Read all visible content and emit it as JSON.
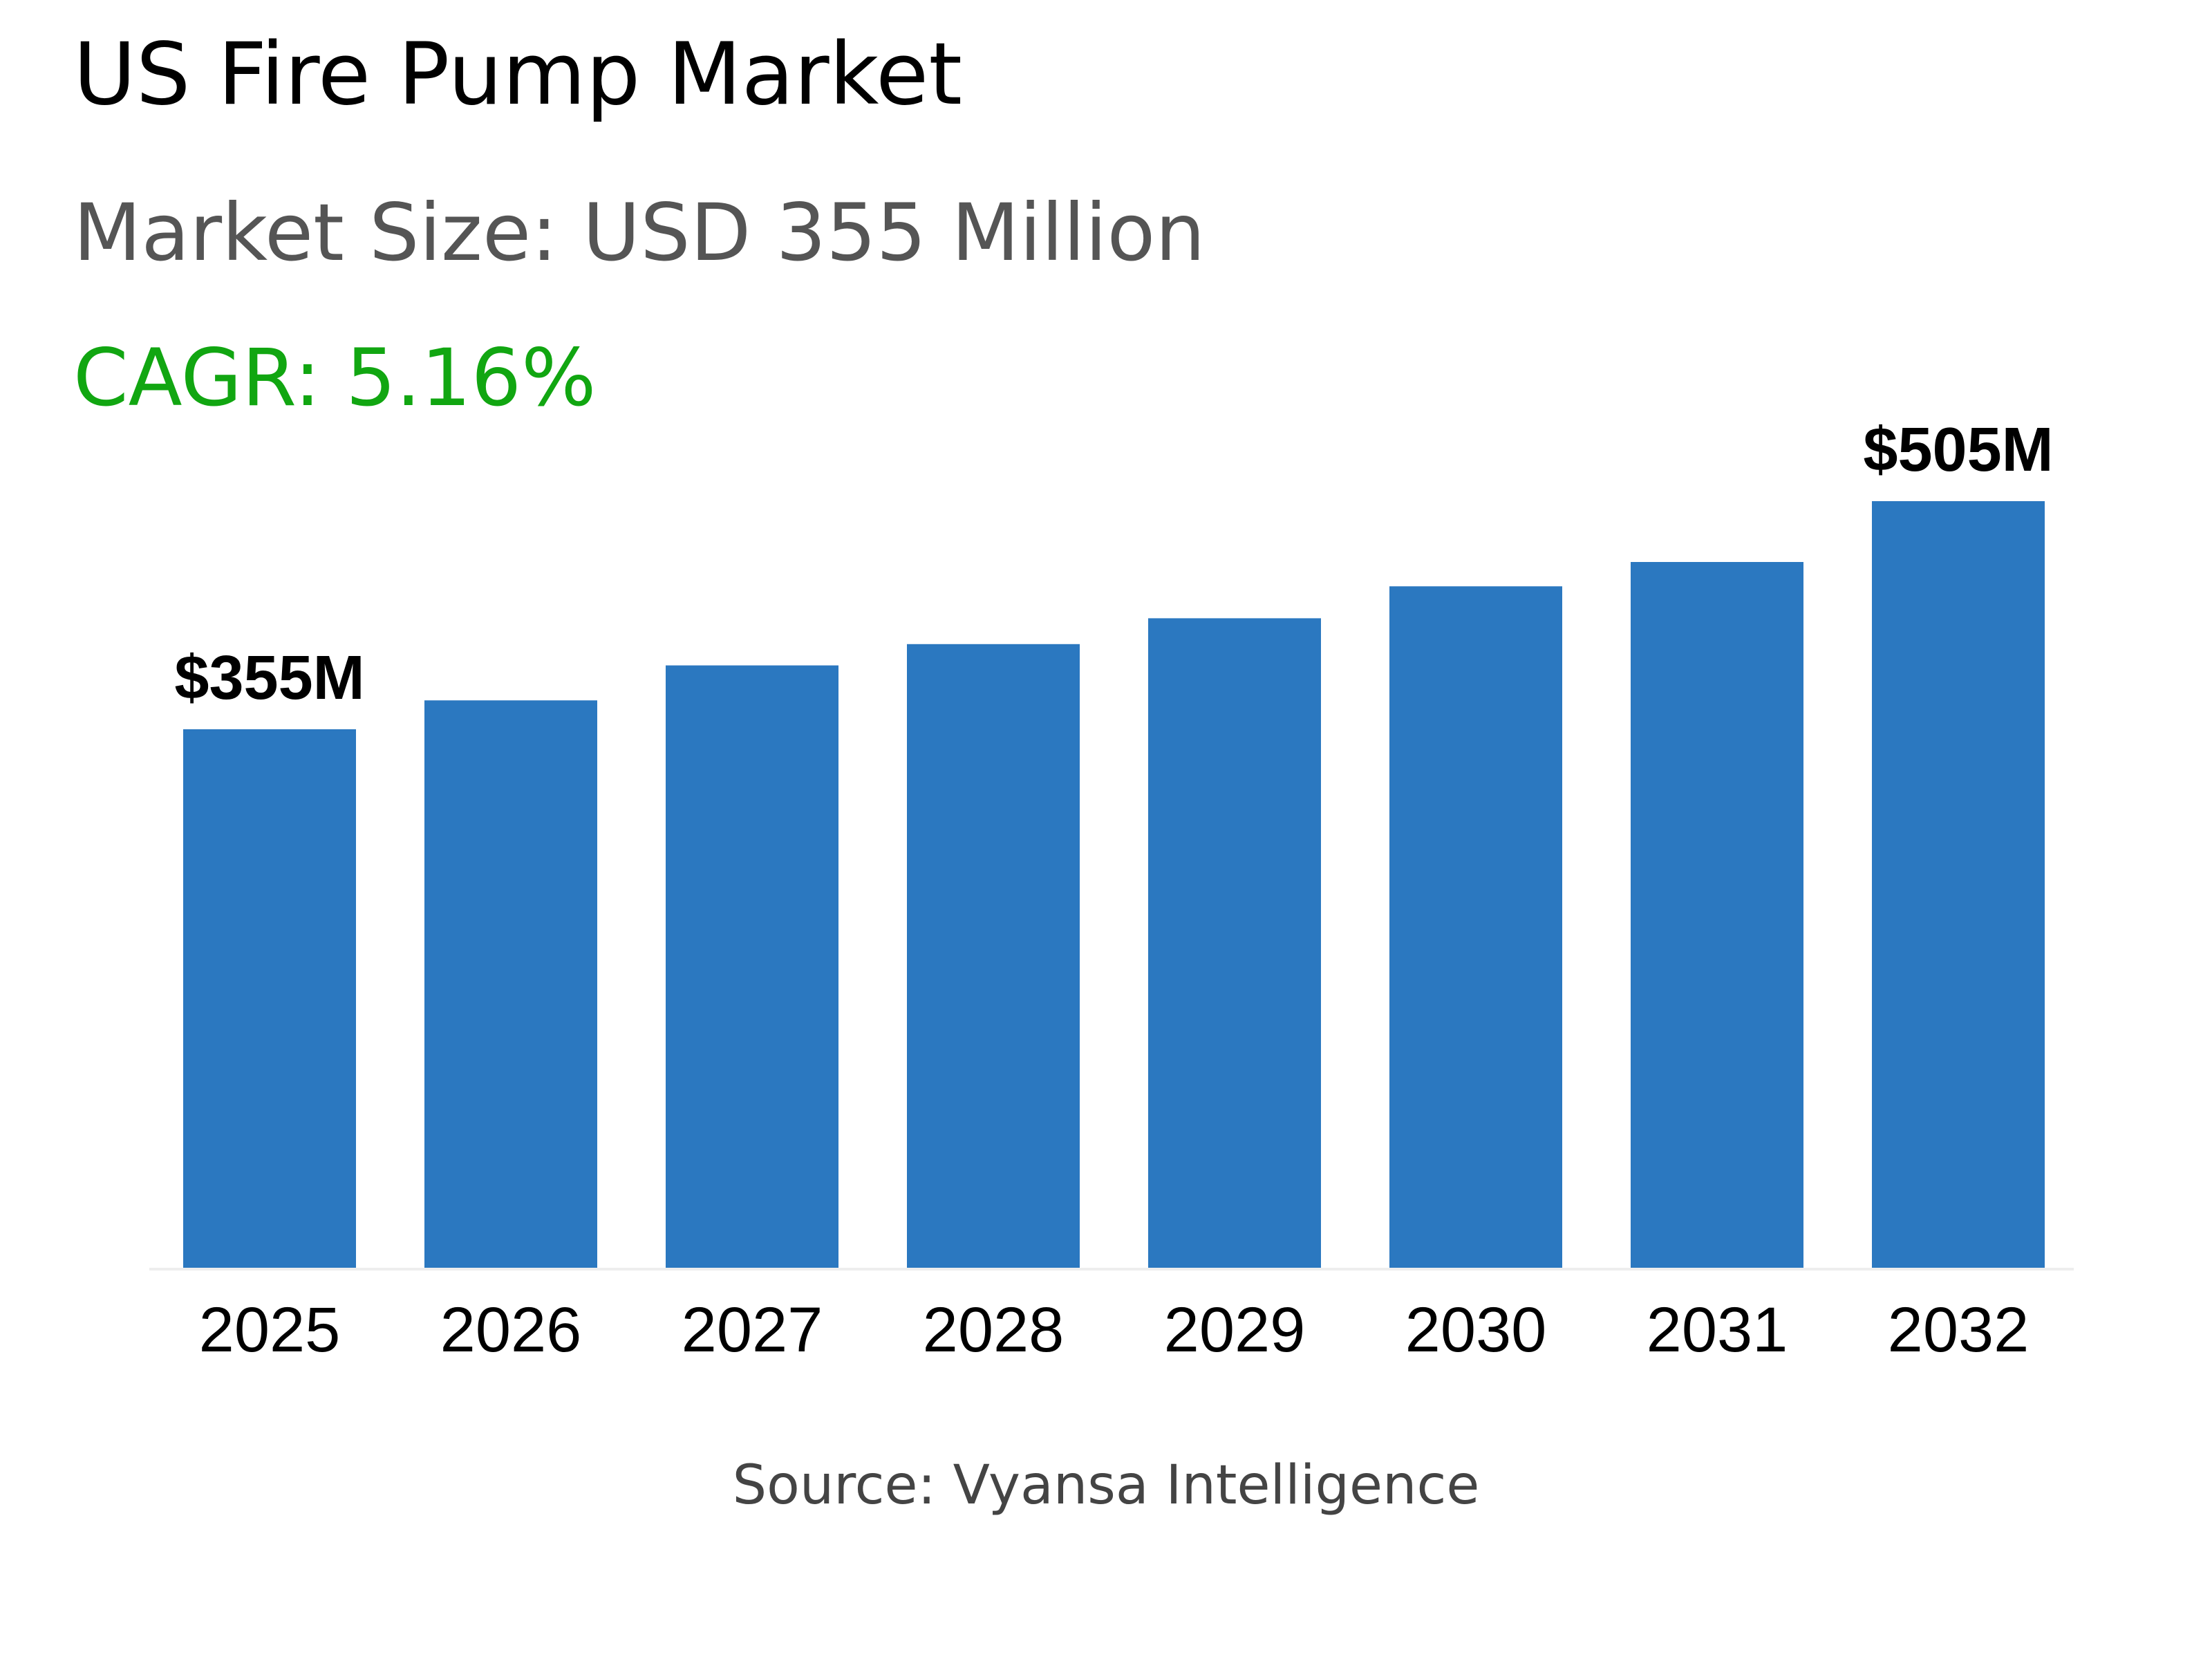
{
  "header": {
    "title": "US Fire Pump Market",
    "market_size": "Market Size: USD 355 Million",
    "cagr": "CAGR: 5.16%"
  },
  "footer": {
    "source": "Source: Vyansa Intelligence"
  },
  "colors": {
    "bar": "#2b78c0",
    "title": "#000000",
    "subtitle": "#555555",
    "cagr": "#11a611",
    "source": "#444444"
  },
  "chart_data": {
    "type": "bar",
    "title": "",
    "xlabel": "",
    "ylabel": "",
    "categories": [
      "2025",
      "2026",
      "2027",
      "2028",
      "2029",
      "2030",
      "2031",
      "2032"
    ],
    "values": [
      355,
      374,
      397,
      411,
      428,
      449,
      465,
      505
    ],
    "ylim": [
      0,
      560
    ],
    "data_labels": [
      {
        "category": "2025",
        "text": "$355M"
      },
      {
        "category": "2032",
        "text": "$505M"
      }
    ],
    "grid": false,
    "legend": "none"
  }
}
